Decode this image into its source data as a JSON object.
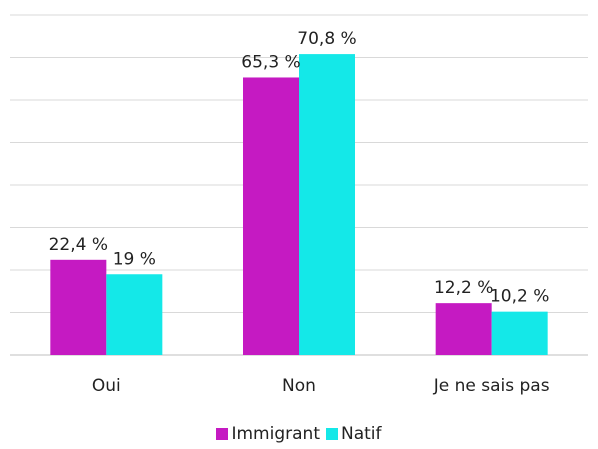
{
  "chart_data": {
    "type": "bar",
    "categories": [
      "Oui",
      "Non",
      "Je ne sais pas"
    ],
    "series": [
      {
        "name": "Immigrant",
        "values": [
          22.4,
          65.3,
          12.2
        ],
        "labels": [
          "22,4 %",
          "65,3 %",
          "12,2 %"
        ],
        "color": "#c51ac2"
      },
      {
        "name": "Natif",
        "values": [
          19.0,
          70.8,
          10.2
        ],
        "labels": [
          "19 %",
          "70,8 %",
          "10,2 %"
        ],
        "color": "#14e8e8"
      }
    ],
    "ylim": [
      0,
      80
    ],
    "grid": true,
    "legend": "bottom",
    "title": "",
    "xlabel": "",
    "ylabel": ""
  }
}
